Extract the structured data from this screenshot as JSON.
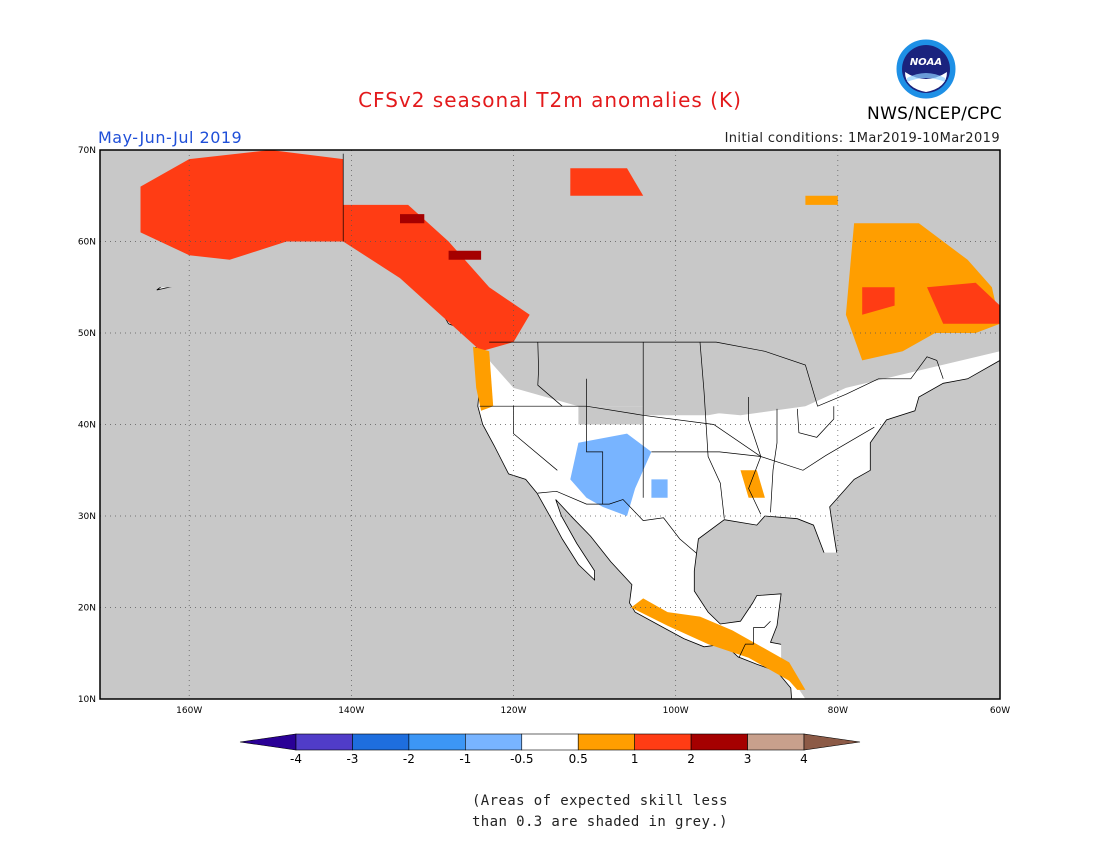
{
  "figure": {
    "title": "CFSv2 seasonal T2m anomalies (K)",
    "season": "May-Jun-Jul 2019",
    "initial_conditions": "Initial conditions: 1Mar2019-10Mar2019",
    "agency": "NWS/NCEP/CPC",
    "logo_text": "NOAA",
    "skill_note_line1": "(Areas of expected skill less",
    "skill_note_line2": "than 0.3 are shaded in grey.)"
  },
  "map": {
    "lon_range": [
      -171,
      -60
    ],
    "lat_range": [
      10,
      70
    ],
    "gridlines": "dotted",
    "lat_ticks": [
      {
        "value": 10,
        "label": "10N"
      },
      {
        "value": 20,
        "label": "20N"
      },
      {
        "value": 30,
        "label": "30N"
      },
      {
        "value": 40,
        "label": "40N"
      },
      {
        "value": 50,
        "label": "50N"
      },
      {
        "value": 60,
        "label": "60N"
      },
      {
        "value": 70,
        "label": "70N"
      }
    ],
    "lon_ticks": [
      {
        "value": -160,
        "label": "160W"
      },
      {
        "value": -140,
        "label": "140W"
      },
      {
        "value": -120,
        "label": "120W"
      },
      {
        "value": -100,
        "label": "100W"
      },
      {
        "value": -80,
        "label": "80W"
      },
      {
        "value": -60,
        "label": "60W"
      }
    ],
    "colors": {
      "ocean_background": "#c8c8c8",
      "land_no_signal": "#ffffff",
      "coastline": "#000000"
    },
    "anomaly_regions": [
      {
        "name": "alaska-warm",
        "level": "1 to 2",
        "color": "#ff3c14",
        "polygon": [
          [
            -166,
            66
          ],
          [
            -160,
            69
          ],
          [
            -150,
            70
          ],
          [
            -141,
            69
          ],
          [
            -141,
            60
          ],
          [
            -148,
            60
          ],
          [
            -155,
            58
          ],
          [
            -160,
            58.5
          ],
          [
            -166,
            61
          ]
        ]
      },
      {
        "name": "alaska-panhandle-bc-warm",
        "level": "1 to 2",
        "color": "#ff3c14",
        "polygon": [
          [
            -141,
            64
          ],
          [
            -133,
            64
          ],
          [
            -128,
            60
          ],
          [
            -123,
            55
          ],
          [
            -118,
            52
          ],
          [
            -120,
            49
          ],
          [
            -124,
            48
          ],
          [
            -129,
            52
          ],
          [
            -134,
            56
          ],
          [
            -141,
            60
          ]
        ]
      },
      {
        "name": "bc-strong-warm",
        "level": "2 to 3",
        "color": "#a50000",
        "polygon": [
          [
            -134,
            63
          ],
          [
            -131,
            63
          ],
          [
            -131,
            62
          ],
          [
            -134,
            62
          ]
        ]
      },
      {
        "name": "bc-strong-warm-2",
        "level": "2 to 3",
        "color": "#a50000",
        "polygon": [
          [
            -128,
            59
          ],
          [
            -124,
            59
          ],
          [
            -124,
            58
          ],
          [
            -128,
            58
          ]
        ]
      },
      {
        "name": "nunavut-warm",
        "level": "1 to 2",
        "color": "#ff3c14",
        "polygon": [
          [
            -113,
            68
          ],
          [
            -106,
            68
          ],
          [
            -104,
            65
          ],
          [
            -113,
            65
          ]
        ]
      },
      {
        "name": "pacific-coast-moderate",
        "level": "0.5 to 1",
        "color": "#ff9e00",
        "polygon": [
          [
            -125,
            48.5
          ],
          [
            -123,
            48
          ],
          [
            -122.5,
            42
          ],
          [
            -124,
            41.5
          ],
          [
            -124.6,
            44
          ]
        ]
      },
      {
        "name": "southwest-cool",
        "level": "-1 to -0.5",
        "color": "#78b4ff",
        "polygon": [
          [
            -112,
            38
          ],
          [
            -106,
            39
          ],
          [
            -103,
            37
          ],
          [
            -105,
            33
          ],
          [
            -106,
            30
          ],
          [
            -109,
            31
          ],
          [
            -111,
            32
          ],
          [
            -113,
            34
          ]
        ]
      },
      {
        "name": "southwest-cool-2",
        "level": "-1 to -0.5",
        "color": "#78b4ff",
        "polygon": [
          [
            -103,
            34
          ],
          [
            -101,
            34
          ],
          [
            -101,
            32
          ],
          [
            -103,
            32
          ]
        ]
      },
      {
        "name": "quebec-labrador-moderate",
        "level": "0.5 to 1",
        "color": "#ff9e00",
        "polygon": [
          [
            -78,
            62
          ],
          [
            -70,
            62
          ],
          [
            -64,
            58
          ],
          [
            -61,
            55
          ],
          [
            -60,
            51
          ],
          [
            -63,
            50
          ],
          [
            -68,
            50
          ],
          [
            -72,
            48
          ],
          [
            -77,
            47
          ],
          [
            -79,
            52
          ]
        ]
      },
      {
        "name": "quebec-warm",
        "level": "1 to 2",
        "color": "#ff3c14",
        "polygon": [
          [
            -77,
            55
          ],
          [
            -73,
            55
          ],
          [
            -73,
            53
          ],
          [
            -77,
            52
          ]
        ]
      },
      {
        "name": "labrador-warm",
        "level": "1 to 2",
        "color": "#ff3c14",
        "polygon": [
          [
            -69,
            55
          ],
          [
            -63,
            55.5
          ],
          [
            -60,
            53
          ],
          [
            -60,
            51
          ],
          [
            -67,
            51
          ]
        ]
      },
      {
        "name": "baffin-moderate",
        "level": "0.5 to 1",
        "color": "#ff9e00",
        "polygon": [
          [
            -84,
            65
          ],
          [
            -80,
            65
          ],
          [
            -80,
            64
          ],
          [
            -84,
            64
          ]
        ]
      },
      {
        "name": "mexico-moderate",
        "level": "0.5 to 1",
        "color": "#ff9e00",
        "polygon": [
          [
            -105.5,
            20
          ],
          [
            -101,
            18
          ],
          [
            -96,
            16
          ],
          [
            -91,
            14.5
          ],
          [
            -88,
            13
          ],
          [
            -86,
            12
          ],
          [
            -85,
            11
          ],
          [
            -84,
            11
          ],
          [
            -86,
            14
          ],
          [
            -90,
            16
          ],
          [
            -93,
            17.5
          ],
          [
            -97,
            19
          ],
          [
            -101,
            19.5
          ],
          [
            -104,
            21
          ]
        ]
      },
      {
        "name": "lower-mississippi-moderate",
        "level": "0.5 to 1",
        "color": "#ff9e00",
        "polygon": [
          [
            -92,
            35
          ],
          [
            -90,
            35
          ],
          [
            -89,
            32
          ],
          [
            -91,
            32
          ]
        ]
      }
    ]
  },
  "colorbar": {
    "bins": [
      {
        "color": "#2a0096",
        "label": "-4"
      },
      {
        "color": "#503cc8",
        "label": "-3"
      },
      {
        "color": "#1e6ede",
        "label": "-2"
      },
      {
        "color": "#3c96f5",
        "label": "-1"
      },
      {
        "color": "#78b4ff",
        "label": "-0.5"
      },
      {
        "color": "#ffffff",
        "label": "0.5"
      },
      {
        "color": "#ff9e00",
        "label": "1"
      },
      {
        "color": "#ff3c14",
        "label": "2"
      },
      {
        "color": "#a50000",
        "label": "3"
      },
      {
        "color": "#c8a08c",
        "label": "4"
      },
      {
        "color": "#8c5a46",
        "label": ""
      }
    ]
  }
}
